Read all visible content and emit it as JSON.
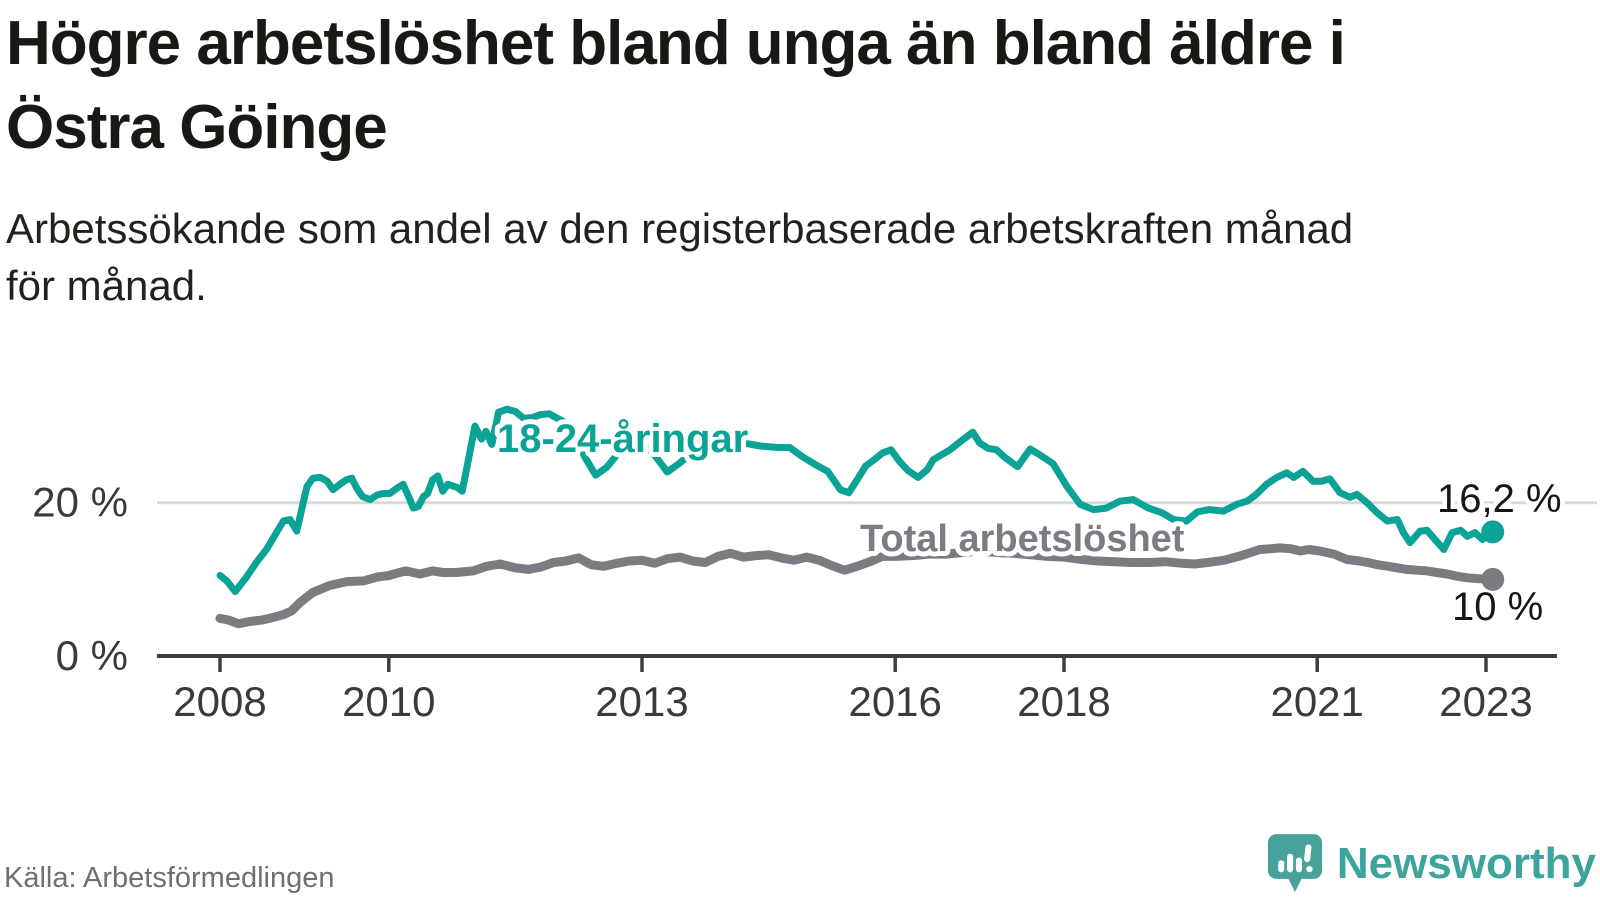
{
  "header": {
    "title_lines": [
      "Högre arbetslöshet bland unga än bland äldre i",
      "Östra Göinge"
    ],
    "subtitle_lines": [
      "Arbetssökande som andel av den registerbaserade arbetskraften månad",
      "för månad."
    ]
  },
  "footer": {
    "source": "Källa: Arbetsförmedlingen",
    "brand": "Newsworthy",
    "brand_color": "#3da49d"
  },
  "colors": {
    "youth_line": "#0aa396",
    "total_line": "#7b7b82",
    "gridline": "#d9d9d9",
    "axis": "#3d3d3d",
    "tick_text": "#3a3a3a",
    "value_text": "#161616"
  },
  "chart_data": {
    "type": "line",
    "unit": "%",
    "x_axis": {
      "ticks": [
        2008,
        2010,
        2013,
        2016,
        2018,
        2021,
        2023
      ],
      "labels": [
        "2008",
        "2010",
        "2013",
        "2016",
        "2018",
        "2021",
        "2023"
      ],
      "range": [
        2008,
        2023.3
      ]
    },
    "y_axis": {
      "ticks": [
        0,
        20
      ],
      "labels": [
        "0 %",
        "20 %"
      ],
      "range": [
        0,
        33
      ],
      "gridline_at": 20
    },
    "series": [
      {
        "name": "18-24-åringar",
        "color": "#0aa396",
        "stroke_width": 7,
        "end_label": "16,2 %",
        "end_value": 16.2,
        "points": [
          [
            2008.0,
            10.5
          ],
          [
            2008.08,
            9.8
          ],
          [
            2008.18,
            8.4
          ],
          [
            2008.32,
            10.4
          ],
          [
            2008.43,
            12.2
          ],
          [
            2008.55,
            13.9
          ],
          [
            2008.67,
            16.1
          ],
          [
            2008.75,
            17.6
          ],
          [
            2008.83,
            17.8
          ],
          [
            2008.91,
            16.3
          ],
          [
            2009.03,
            22.1
          ],
          [
            2009.1,
            23.2
          ],
          [
            2009.19,
            23.3
          ],
          [
            2009.27,
            22.8
          ],
          [
            2009.34,
            21.7
          ],
          [
            2009.42,
            22.4
          ],
          [
            2009.5,
            23.0
          ],
          [
            2009.56,
            23.2
          ],
          [
            2009.62,
            21.9
          ],
          [
            2009.69,
            20.8
          ],
          [
            2009.78,
            20.4
          ],
          [
            2009.86,
            21.0
          ],
          [
            2009.93,
            21.2
          ],
          [
            2010.01,
            21.2
          ],
          [
            2010.1,
            21.9
          ],
          [
            2010.17,
            22.4
          ],
          [
            2010.25,
            20.4
          ],
          [
            2010.29,
            19.3
          ],
          [
            2010.35,
            19.5
          ],
          [
            2010.41,
            20.8
          ],
          [
            2010.46,
            21.2
          ],
          [
            2010.52,
            23.0
          ],
          [
            2010.58,
            23.5
          ],
          [
            2010.64,
            21.5
          ],
          [
            2010.7,
            22.4
          ],
          [
            2010.81,
            22.0
          ],
          [
            2010.87,
            21.5
          ],
          [
            2010.95,
            26.0
          ],
          [
            2011.02,
            30.0
          ],
          [
            2011.1,
            28.3
          ],
          [
            2011.15,
            29.3
          ],
          [
            2011.22,
            27.6
          ],
          [
            2011.3,
            31.8
          ],
          [
            2011.4,
            32.2
          ],
          [
            2011.5,
            31.9
          ],
          [
            2011.6,
            31.0
          ],
          [
            2011.7,
            31.1
          ],
          [
            2011.8,
            31.5
          ],
          [
            2011.9,
            31.6
          ],
          [
            2012.0,
            31.0
          ],
          [
            2012.12,
            30.3
          ],
          [
            2012.22,
            28.8
          ],
          [
            2012.32,
            26.0
          ],
          [
            2012.45,
            23.6
          ],
          [
            2012.58,
            24.6
          ],
          [
            2012.7,
            26.2
          ],
          [
            2012.85,
            27.4
          ],
          [
            2013.0,
            27.8
          ],
          [
            2013.15,
            26.2
          ],
          [
            2013.3,
            24.0
          ],
          [
            2013.45,
            25.2
          ],
          [
            2013.6,
            26.6
          ],
          [
            2013.8,
            27.6
          ],
          [
            2014.0,
            28.2
          ],
          [
            2014.2,
            27.8
          ],
          [
            2014.4,
            27.4
          ],
          [
            2014.6,
            27.2
          ],
          [
            2014.75,
            27.2
          ],
          [
            2014.9,
            26.0
          ],
          [
            2015.05,
            25.0
          ],
          [
            2015.2,
            24.1
          ],
          [
            2015.35,
            21.7
          ],
          [
            2015.45,
            21.3
          ],
          [
            2015.55,
            23.0
          ],
          [
            2015.65,
            24.8
          ],
          [
            2015.75,
            25.6
          ],
          [
            2015.85,
            26.5
          ],
          [
            2015.95,
            26.9
          ],
          [
            2016.05,
            25.4
          ],
          [
            2016.15,
            24.2
          ],
          [
            2016.27,
            23.3
          ],
          [
            2016.38,
            24.3
          ],
          [
            2016.45,
            25.6
          ],
          [
            2016.65,
            26.9
          ],
          [
            2016.8,
            28.2
          ],
          [
            2016.92,
            29.2
          ],
          [
            2017.0,
            27.8
          ],
          [
            2017.1,
            27.1
          ],
          [
            2017.2,
            26.9
          ],
          [
            2017.3,
            25.9
          ],
          [
            2017.45,
            24.7
          ],
          [
            2017.6,
            27.0
          ],
          [
            2017.72,
            26.2
          ],
          [
            2017.87,
            25.1
          ],
          [
            2018.03,
            22.2
          ],
          [
            2018.19,
            19.8
          ],
          [
            2018.35,
            19.1
          ],
          [
            2018.5,
            19.3
          ],
          [
            2018.66,
            20.2
          ],
          [
            2018.82,
            20.4
          ],
          [
            2019.0,
            19.3
          ],
          [
            2019.16,
            18.7
          ],
          [
            2019.3,
            17.8
          ],
          [
            2019.45,
            17.6
          ],
          [
            2019.58,
            18.8
          ],
          [
            2019.72,
            19.1
          ],
          [
            2019.89,
            18.9
          ],
          [
            2020.05,
            19.8
          ],
          [
            2020.17,
            20.2
          ],
          [
            2020.28,
            21.1
          ],
          [
            2020.4,
            22.4
          ],
          [
            2020.52,
            23.3
          ],
          [
            2020.64,
            23.9
          ],
          [
            2020.72,
            23.3
          ],
          [
            2020.83,
            24.1
          ],
          [
            2020.95,
            22.8
          ],
          [
            2021.05,
            22.8
          ],
          [
            2021.15,
            23.1
          ],
          [
            2021.27,
            21.3
          ],
          [
            2021.39,
            20.7
          ],
          [
            2021.47,
            21.1
          ],
          [
            2021.59,
            20.0
          ],
          [
            2021.71,
            18.7
          ],
          [
            2021.83,
            17.6
          ],
          [
            2021.95,
            17.8
          ],
          [
            2022.02,
            16.1
          ],
          [
            2022.1,
            14.8
          ],
          [
            2022.22,
            16.3
          ],
          [
            2022.3,
            16.4
          ],
          [
            2022.38,
            15.4
          ],
          [
            2022.5,
            13.9
          ],
          [
            2022.6,
            16.1
          ],
          [
            2022.7,
            16.4
          ],
          [
            2022.78,
            15.6
          ],
          [
            2022.87,
            16.1
          ],
          [
            2022.96,
            15.2
          ],
          [
            2023.08,
            16.2
          ]
        ]
      },
      {
        "name": "Total arbetslöshet",
        "color": "#7b7b82",
        "stroke_width": 9,
        "end_label": "10 %",
        "end_value": 10.0,
        "points": [
          [
            2008.0,
            4.9
          ],
          [
            2008.1,
            4.7
          ],
          [
            2008.22,
            4.2
          ],
          [
            2008.35,
            4.5
          ],
          [
            2008.5,
            4.7
          ],
          [
            2008.62,
            5.0
          ],
          [
            2008.75,
            5.4
          ],
          [
            2008.85,
            5.9
          ],
          [
            2008.95,
            7.0
          ],
          [
            2009.1,
            8.3
          ],
          [
            2009.3,
            9.2
          ],
          [
            2009.5,
            9.7
          ],
          [
            2009.7,
            9.8
          ],
          [
            2009.86,
            10.3
          ],
          [
            2010.0,
            10.5
          ],
          [
            2010.2,
            11.1
          ],
          [
            2010.37,
            10.7
          ],
          [
            2010.52,
            11.1
          ],
          [
            2010.64,
            10.9
          ],
          [
            2010.8,
            10.9
          ],
          [
            2011.0,
            11.1
          ],
          [
            2011.16,
            11.7
          ],
          [
            2011.32,
            12.0
          ],
          [
            2011.5,
            11.5
          ],
          [
            2011.65,
            11.3
          ],
          [
            2011.8,
            11.6
          ],
          [
            2011.95,
            12.2
          ],
          [
            2012.1,
            12.4
          ],
          [
            2012.25,
            12.8
          ],
          [
            2012.4,
            11.9
          ],
          [
            2012.55,
            11.7
          ],
          [
            2012.7,
            12.1
          ],
          [
            2012.85,
            12.4
          ],
          [
            2013.0,
            12.5
          ],
          [
            2013.15,
            12.1
          ],
          [
            2013.3,
            12.7
          ],
          [
            2013.45,
            12.9
          ],
          [
            2013.6,
            12.4
          ],
          [
            2013.75,
            12.2
          ],
          [
            2013.9,
            13.0
          ],
          [
            2014.05,
            13.4
          ],
          [
            2014.2,
            12.9
          ],
          [
            2014.35,
            13.1
          ],
          [
            2014.5,
            13.2
          ],
          [
            2014.65,
            12.8
          ],
          [
            2014.8,
            12.5
          ],
          [
            2014.95,
            12.9
          ],
          [
            2015.1,
            12.5
          ],
          [
            2015.25,
            11.8
          ],
          [
            2015.4,
            11.2
          ],
          [
            2015.55,
            11.7
          ],
          [
            2015.7,
            12.3
          ],
          [
            2015.85,
            13.0
          ],
          [
            2016.0,
            13.0
          ],
          [
            2016.2,
            13.1
          ],
          [
            2016.4,
            13.3
          ],
          [
            2016.6,
            13.3
          ],
          [
            2016.8,
            13.5
          ],
          [
            2017.0,
            13.7
          ],
          [
            2017.2,
            13.5
          ],
          [
            2017.4,
            13.4
          ],
          [
            2017.6,
            13.2
          ],
          [
            2017.8,
            13.0
          ],
          [
            2018.0,
            12.9
          ],
          [
            2018.2,
            12.6
          ],
          [
            2018.4,
            12.4
          ],
          [
            2018.6,
            12.3
          ],
          [
            2018.8,
            12.2
          ],
          [
            2019.0,
            12.2
          ],
          [
            2019.2,
            12.3
          ],
          [
            2019.4,
            12.1
          ],
          [
            2019.55,
            12.0
          ],
          [
            2019.7,
            12.2
          ],
          [
            2019.9,
            12.5
          ],
          [
            2020.1,
            13.1
          ],
          [
            2020.32,
            13.9
          ],
          [
            2020.45,
            14.0
          ],
          [
            2020.56,
            14.1
          ],
          [
            2020.68,
            14.0
          ],
          [
            2020.8,
            13.7
          ],
          [
            2020.9,
            13.9
          ],
          [
            2021.03,
            13.7
          ],
          [
            2021.2,
            13.3
          ],
          [
            2021.35,
            12.6
          ],
          [
            2021.5,
            12.4
          ],
          [
            2021.6,
            12.2
          ],
          [
            2021.72,
            11.9
          ],
          [
            2021.84,
            11.7
          ],
          [
            2021.95,
            11.5
          ],
          [
            2022.06,
            11.3
          ],
          [
            2022.18,
            11.2
          ],
          [
            2022.3,
            11.1
          ],
          [
            2022.42,
            10.9
          ],
          [
            2022.54,
            10.7
          ],
          [
            2022.66,
            10.4
          ],
          [
            2022.78,
            10.2
          ],
          [
            2022.9,
            10.1
          ],
          [
            2023.08,
            10.0
          ]
        ]
      }
    ]
  }
}
